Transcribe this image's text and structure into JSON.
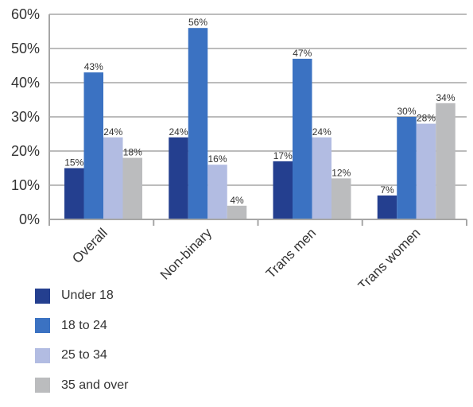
{
  "chart_data": {
    "type": "bar",
    "categories": [
      "Overall",
      "Non-binary",
      "Trans men",
      "Trans women"
    ],
    "series": [
      {
        "name": "Under 18",
        "color": "#243f8f",
        "values": [
          15,
          24,
          17,
          7
        ],
        "labels": [
          "15%",
          "24%",
          "17%",
          "7%"
        ]
      },
      {
        "name": "18 to 24",
        "color": "#3b72c2",
        "values": [
          43,
          56,
          47,
          30
        ],
        "labels": [
          "43%",
          "56%",
          "47%",
          "30%"
        ]
      },
      {
        "name": "25 to 34",
        "color": "#b2bce2",
        "values": [
          24,
          16,
          24,
          28
        ],
        "labels": [
          "24%",
          "16%",
          "24%",
          "28%"
        ]
      },
      {
        "name": "35 and over",
        "color": "#bbbcbe",
        "values": [
          18,
          4,
          12,
          34
        ],
        "labels": [
          "18%",
          "4%",
          "12%",
          "34%"
        ]
      }
    ],
    "yticks": [
      "0%",
      "10%",
      "20%",
      "30%",
      "40%",
      "50%",
      "60%"
    ],
    "ylim": [
      0,
      60
    ],
    "grid": true,
    "legend_position": "bottom-left"
  }
}
